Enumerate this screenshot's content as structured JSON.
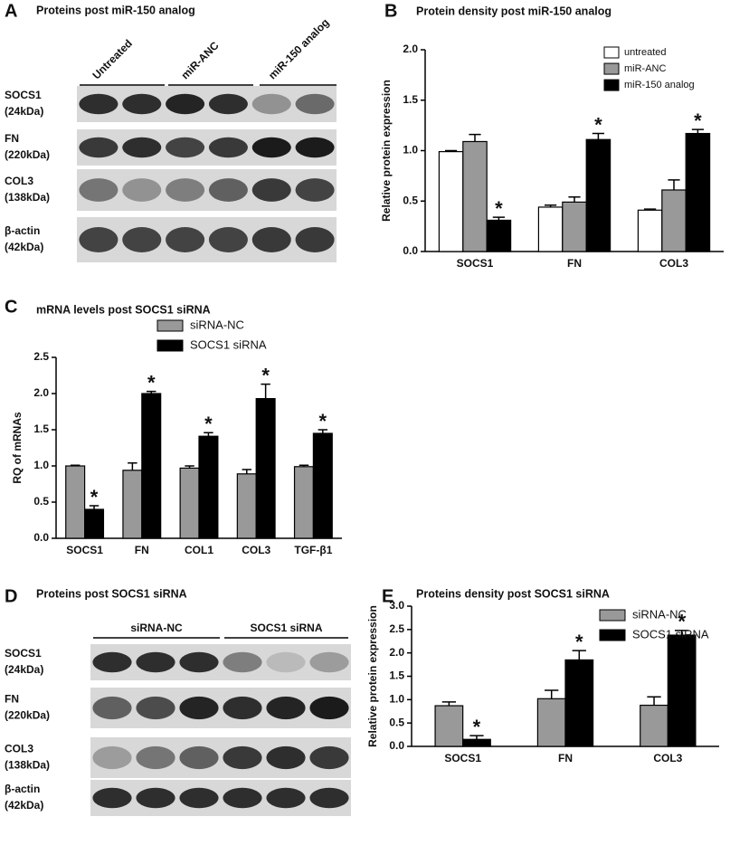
{
  "blots": [
    {
      "letter": "A",
      "title": "Proteins post miR-150 analog",
      "groups": [
        "Untreated",
        "miR-ANC",
        "miR-150 analog"
      ],
      "rows": [
        [
          "SOCS1",
          "(24kDa)"
        ],
        [
          "FN",
          "(220kDa)"
        ],
        [
          "COL3",
          "(138kDa)"
        ],
        [
          "β-actin",
          "(42kDa)"
        ]
      ]
    },
    {
      "letter": "D",
      "title": "Proteins post SOCS1 siRNA",
      "groups": [
        "siRNA-NC",
        "SOCS1 siRNA"
      ],
      "rows": [
        [
          "SOCS1",
          "(24kDa)"
        ],
        [
          "FN",
          "(220kDa)"
        ],
        [
          "COL3",
          "(138kDa)"
        ],
        [
          "β-actin",
          "(42kDa)"
        ]
      ]
    }
  ],
  "chart_data": [
    {
      "type": "bar",
      "letter": "B",
      "title": "Protein density post miR-150 analog",
      "y_label": "Relative protein expression",
      "categories": [
        "SOCS1",
        "FN",
        "COL3"
      ],
      "series": [
        {
          "name": "untreated",
          "color": "#ffffff",
          "values": [
            0.99,
            0.44,
            0.41
          ],
          "errors": [
            0.01,
            0.02,
            0.01
          ],
          "sig_labels": [
            null,
            null,
            null
          ]
        },
        {
          "name": "miR-ANC",
          "color": "#999999",
          "values": [
            1.09,
            0.49,
            0.61
          ],
          "errors": [
            0.07,
            0.05,
            0.1
          ],
          "sig_labels": [
            null,
            null,
            null
          ]
        },
        {
          "name": "miR-150 analog",
          "color": "#000000",
          "values": [
            0.31,
            1.11,
            1.17
          ],
          "errors": [
            0.03,
            0.06,
            0.04
          ],
          "sig_labels": [
            "*",
            "*",
            "*"
          ]
        }
      ],
      "ylim": [
        0,
        2
      ],
      "yticks": [
        {
          "value": 0,
          "label": "0.0"
        },
        0.5,
        {
          "value": 1,
          "label": "1.0"
        },
        1.5,
        {
          "value": 2,
          "label": "2.0"
        }
      ],
      "legend": "upper right"
    },
    {
      "type": "bar",
      "letter": "C",
      "title": "mRNA levels post SOCS1 siRNA",
      "y_label": "RQ of mRNAs",
      "categories": [
        "SOCS1",
        "FN",
        "COL1",
        "COL3",
        "TGF-β1"
      ],
      "series": [
        {
          "name": "siRNA-NC",
          "color": "#999999",
          "values": [
            1.0,
            0.94,
            0.97,
            0.89,
            0.99
          ],
          "errors": [
            0.01,
            0.1,
            0.03,
            0.06,
            0.02
          ],
          "sig_labels": [
            null,
            null,
            null,
            null,
            null
          ]
        },
        {
          "name": "SOCS1 siRNA",
          "color": "#000000",
          "values": [
            0.4,
            2.0,
            1.41,
            1.93,
            1.45
          ],
          "errors": [
            0.05,
            0.03,
            0.05,
            0.2,
            0.05
          ],
          "sig_labels": [
            "*",
            "*",
            "*",
            "*",
            "*"
          ]
        }
      ],
      "ylim": [
        0,
        2.5
      ],
      "yticks": [
        {
          "value": 0,
          "label": "0.0"
        },
        0.5,
        {
          "value": 1,
          "label": "1.0"
        },
        1.5,
        {
          "value": 2,
          "label": "2.0"
        },
        2.5
      ],
      "legend": "upper left"
    },
    {
      "type": "bar",
      "letter": "E",
      "title": "Proteins density post SOCS1 siRNA",
      "y_label": "Relative protein expression",
      "categories": [
        "SOCS1",
        "FN",
        "COL3"
      ],
      "series": [
        {
          "name": "siRNA-NC",
          "color": "#999999",
          "values": [
            0.87,
            1.02,
            0.88
          ],
          "errors": [
            0.08,
            0.18,
            0.18
          ],
          "sig_labels": [
            null,
            null,
            null
          ]
        },
        {
          "name": "SOCS1 siRNA",
          "color": "#000000",
          "values": [
            0.15,
            1.85,
            2.38
          ],
          "errors": [
            0.08,
            0.2,
            0.1
          ],
          "sig_labels": [
            "*",
            "*",
            "*"
          ]
        }
      ],
      "ylim": [
        0,
        3
      ],
      "yticks": [
        {
          "value": 0,
          "label": "0.0"
        },
        0.5,
        {
          "value": 1,
          "label": "1.0"
        },
        1.5,
        {
          "value": 2,
          "label": "2.0"
        },
        2.5,
        {
          "value": 3,
          "label": "3.0"
        }
      ],
      "legend": "upper right"
    }
  ]
}
